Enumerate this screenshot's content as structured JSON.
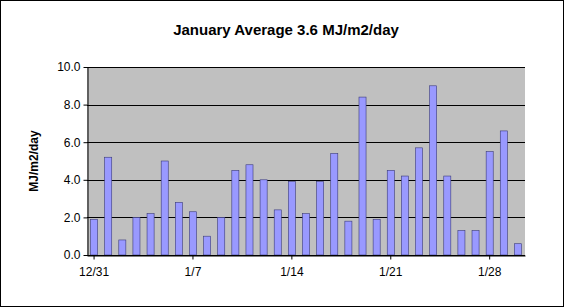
{
  "chart_data": {
    "type": "bar",
    "title": "January Average 3.6 MJ/m2/day",
    "y_label": "MJ/m2/day",
    "categories": [
      "12/31",
      null,
      null,
      null,
      null,
      null,
      null,
      "1/7",
      null,
      null,
      null,
      null,
      null,
      null,
      "1/14",
      null,
      null,
      null,
      null,
      null,
      null,
      "1/21",
      null,
      null,
      null,
      null,
      null,
      null,
      "1/28",
      null,
      null
    ],
    "values": [
      1.9,
      5.2,
      0.8,
      2.0,
      2.2,
      5.0,
      2.8,
      2.3,
      1.0,
      2.0,
      4.5,
      4.8,
      4.0,
      2.4,
      3.9,
      2.2,
      3.9,
      5.4,
      1.8,
      8.4,
      1.9,
      4.5,
      4.2,
      5.7,
      9.0,
      4.2,
      1.3,
      1.3,
      5.5,
      6.6,
      0.6
    ],
    "color": "#9999ff",
    "ylim": [
      0,
      10
    ],
    "yticks": [
      {
        "value": 0,
        "label": "0.0"
      },
      {
        "value": 2,
        "label": "2.0"
      },
      {
        "value": 4,
        "label": "4.0"
      },
      {
        "value": 6,
        "label": "6.0"
      },
      {
        "value": 8,
        "label": "8.0"
      },
      {
        "value": 10,
        "label": "10.0"
      }
    ],
    "grid": true
  }
}
